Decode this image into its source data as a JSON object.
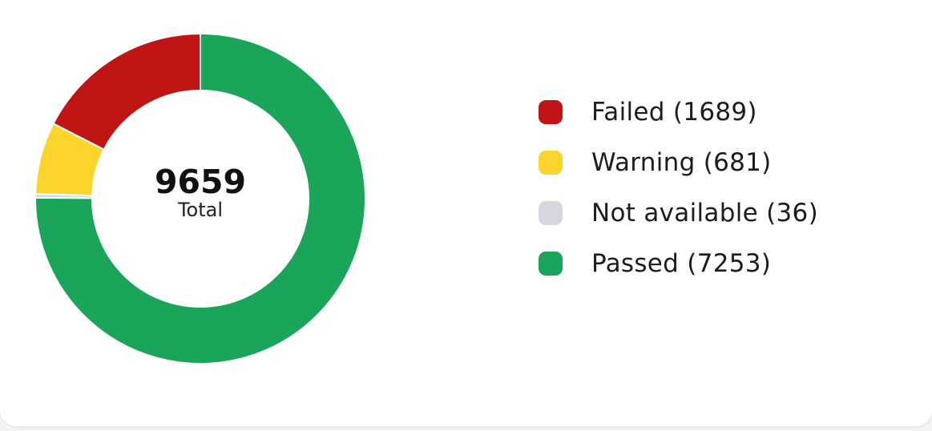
{
  "chart_data": {
    "type": "pie",
    "variant": "donut",
    "center": {
      "value": "9659",
      "label": "Total"
    },
    "slices": [
      {
        "name": "Passed",
        "legend": "Passed (7253)",
        "value": 7253,
        "color": "#1aa55a"
      },
      {
        "name": "Not available",
        "legend": "Not available (36)",
        "value": 36,
        "color": "#d4d7e0"
      },
      {
        "name": "Warning",
        "legend": "Warning (681)",
        "value": 681,
        "color": "#fbd52c"
      },
      {
        "name": "Failed",
        "legend": "Failed (1689)",
        "value": 1689,
        "color": "#bf1515"
      }
    ],
    "legend_order": [
      "Failed",
      "Warning",
      "Not available",
      "Passed"
    ],
    "legend_placement": "right",
    "start": "top",
    "direction": "clockwise"
  }
}
